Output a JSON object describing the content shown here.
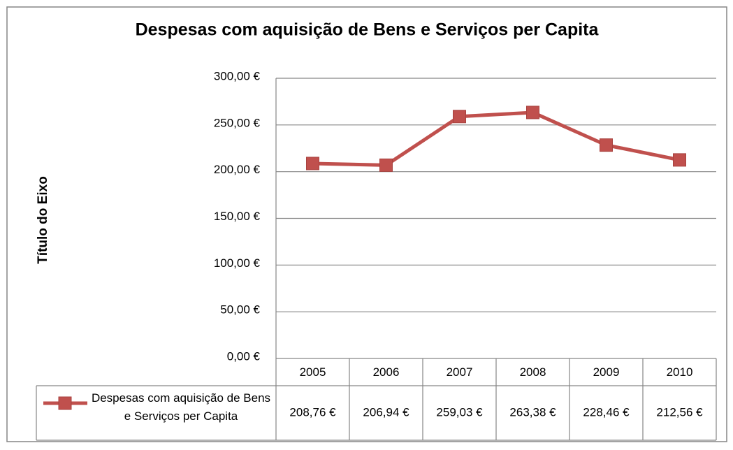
{
  "chart_data": {
    "type": "line",
    "title": "Despesas com aquisição de Bens e Serviços per Capita",
    "y_label": "Título do Eixo",
    "categories": [
      "2005",
      "2006",
      "2007",
      "2008",
      "2009",
      "2010"
    ],
    "series": [
      {
        "name": "Despesas com aquisição de Bens e Serviços per Capita",
        "color": "#c0504d",
        "values": [
          208.76,
          206.94,
          259.03,
          263.38,
          228.46,
          212.56
        ],
        "value_labels": [
          "208,76 €",
          "206,94 €",
          "259,03 €",
          "263,38 €",
          "228,46 €",
          "212,56 €"
        ]
      }
    ],
    "ylim": [
      0,
      300
    ],
    "yticks": [
      {
        "value": 0,
        "label": "0,00 €"
      },
      {
        "value": 50,
        "label": "50,00 €"
      },
      {
        "value": 100,
        "label": "100,00 €"
      },
      {
        "value": 150,
        "label": "150,00 €"
      },
      {
        "value": 200,
        "label": "200,00 €"
      },
      {
        "value": 250,
        "label": "250,00 €"
      },
      {
        "value": 300,
        "label": "300,00 €"
      }
    ],
    "grid": true,
    "data_table": true
  }
}
